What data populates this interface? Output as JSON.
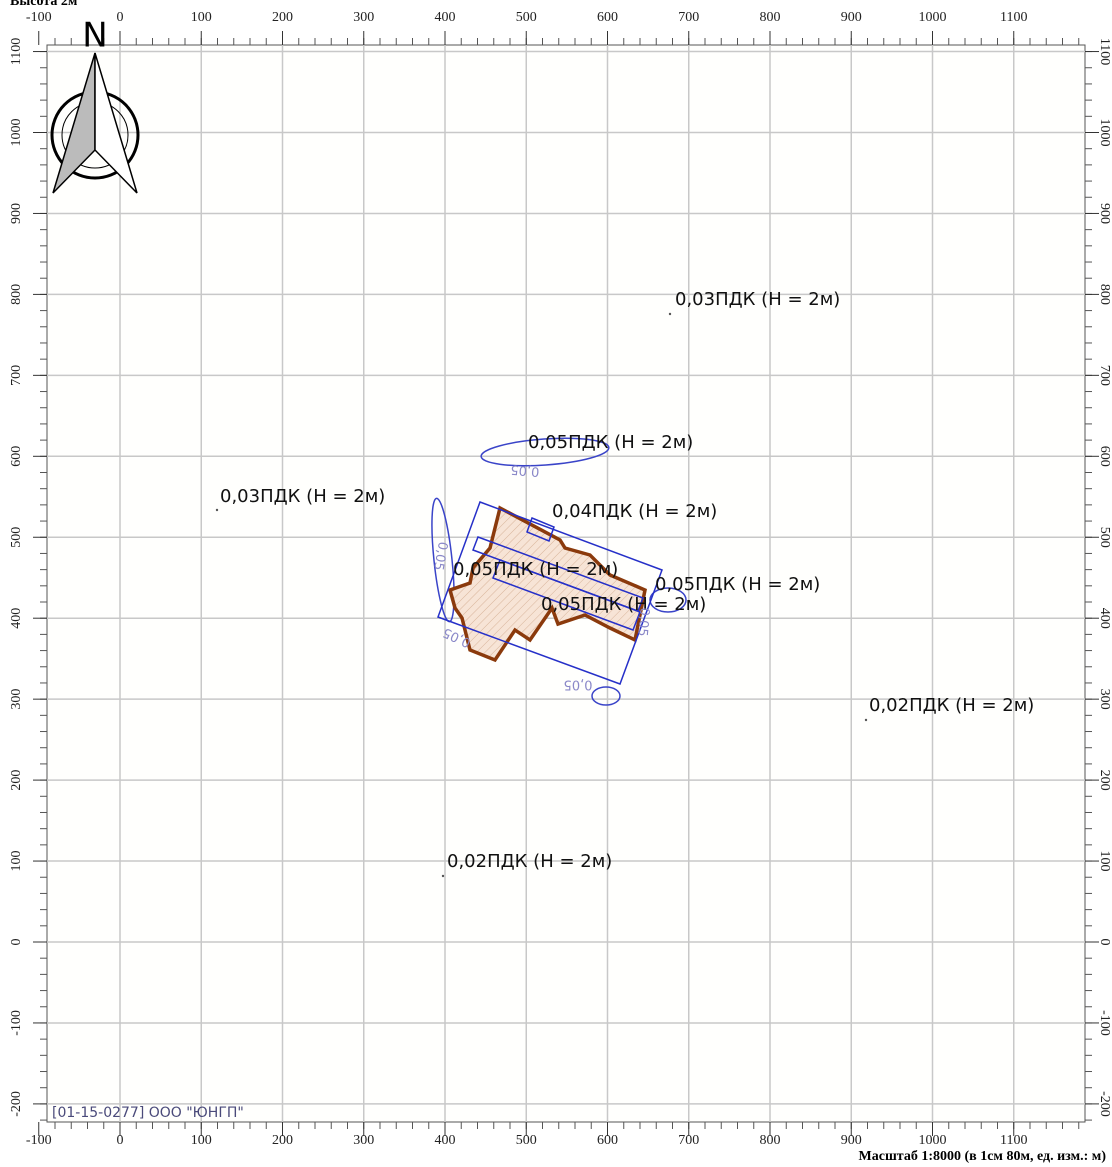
{
  "header": "Высота 2м",
  "x_axis": {
    "ticks": [
      -100,
      0,
      100,
      200,
      300,
      400,
      500,
      600,
      700,
      800,
      900,
      1000,
      1100
    ]
  },
  "y_axis": {
    "ticks": [
      -200,
      -100,
      0,
      100,
      200,
      300,
      400,
      500,
      600,
      700,
      800,
      900,
      1000,
      1100
    ]
  },
  "compass": "N",
  "labels": [
    "0,03ПДК (H = 2м)",
    "0,05ПДК (H = 2м)",
    "0,03ПДК (H = 2м)",
    "0,04ПДК (H = 2м)",
    "0,05ПДК (H = 2м)",
    "0,05ПДК (H = 2м)",
    "0,05ПДК (H = 2м)",
    "0,02ПДК (H = 2м)",
    "0,02ПДК (H = 2м)"
  ],
  "contour_labels": [
    "0,05",
    "0,05",
    "0,05",
    "0,05",
    "0,05"
  ],
  "footer": {
    "org": "[01-15-0277] ООО \"ЮНГП\"",
    "scale": "Масштаб 1:8000 (в 1см 80м, ед. изм.: м)"
  }
}
